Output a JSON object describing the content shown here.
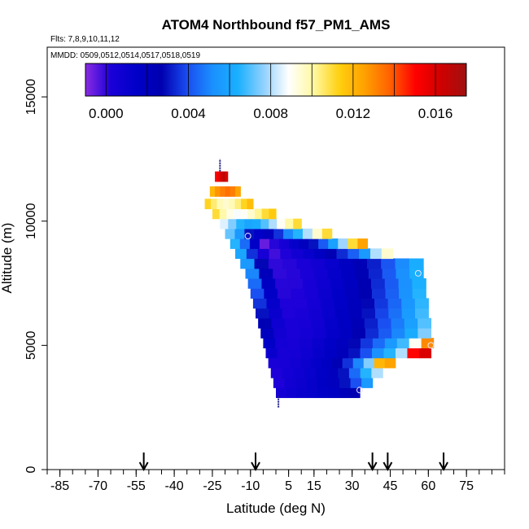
{
  "chart_data": {
    "type": "heatmap",
    "title": "ATOM4 Northbound f57_PM1_AMS",
    "flights_text": "Flts: 7,8,9,10,11,12",
    "dates_text": "MMDD: 0509,0512,0514,0517,0518,0519",
    "xlabel": "Latitude (deg N)",
    "ylabel": "Altitude (m)",
    "xlim": [
      -90,
      90
    ],
    "ylim": [
      0,
      17000
    ],
    "x_minor_step": 5,
    "x_ticks": [
      -85,
      -70,
      -55,
      -40,
      -25,
      -10,
      5,
      15,
      30,
      45,
      60,
      75
    ],
    "y_ticks": [
      0,
      5000,
      10000,
      15000
    ],
    "colorbar": {
      "min": -0.001,
      "max": 0.0175,
      "ticks": [
        0.0,
        0.004,
        0.008,
        0.012,
        0.016
      ],
      "tick_labels": [
        "0.000",
        "0.004",
        "0.008",
        "0.012",
        "0.016"
      ],
      "colors": [
        "#8a2be2",
        "#1a00d8",
        "#0000c8",
        "#0000b0",
        "#1a4cf0",
        "#1a90ff",
        "#1ab0ff",
        "#8fd0ff",
        "#ffffff",
        "#fff8a0",
        "#ffd010",
        "#ffa000",
        "#ff6000",
        "#ff0000",
        "#d00000",
        "#a01010"
      ],
      "divider_values": [
        0.0,
        0.002,
        0.004,
        0.006,
        0.008,
        0.01,
        0.012,
        0.014,
        0.016
      ]
    },
    "arrows_lat": [
      -52,
      -8,
      38,
      44,
      66
    ],
    "rows": [
      {
        "alt": 3100,
        "lat_start": 0,
        "lat_end": 33,
        "values": [
          0.0005,
          0.0008,
          0.001,
          0.0012,
          0.0015,
          0.0018,
          0.0022,
          0.0026
        ]
      },
      {
        "alt": 3500,
        "lat_start": -1,
        "lat_end": 38,
        "values": [
          0.0002,
          0.0006,
          0.0009,
          0.0012,
          0.0016,
          0.002,
          0.003,
          0.004,
          0.0055
        ]
      },
      {
        "alt": 3900,
        "lat_start": -2,
        "lat_end": 42,
        "values": [
          0.0002,
          0.0005,
          0.0008,
          0.0011,
          0.0015,
          0.002,
          0.003,
          0.0045,
          0.0065,
          0.008
        ]
      },
      {
        "alt": 4300,
        "lat_start": -3,
        "lat_end": 47,
        "values": [
          0.0003,
          0.0004,
          0.0006,
          0.0009,
          0.0013,
          0.0018,
          0.0025,
          0.0035,
          0.005,
          0.0075,
          0.012,
          0.0125
        ]
      },
      {
        "alt": 4700,
        "lat_start": -4,
        "lat_end": 61,
        "values": [
          0.001,
          0.0004,
          0.0005,
          0.0008,
          0.0012,
          0.0016,
          0.0022,
          0.003,
          0.004,
          0.0052,
          0.0065,
          0.008,
          0.015,
          0.016
        ]
      },
      {
        "alt": 5100,
        "lat_start": -5,
        "lat_end": 62,
        "values": [
          0.0015,
          0.0005,
          0.0004,
          0.0006,
          0.001,
          0.0015,
          0.002,
          0.0028,
          0.0036,
          0.0045,
          0.0055,
          0.0068,
          0.009,
          0.013
        ]
      },
      {
        "alt": 5500,
        "lat_start": -6,
        "lat_end": 61,
        "values": [
          0.002,
          0.0006,
          0.0003,
          0.0005,
          0.0008,
          0.0013,
          0.0018,
          0.0026,
          0.0034,
          0.0042,
          0.005,
          0.0062,
          0.0075
        ]
      },
      {
        "alt": 5900,
        "lat_start": -7,
        "lat_end": 61,
        "values": [
          0.0025,
          0.0008,
          0.0003,
          0.0004,
          0.0007,
          0.0012,
          0.0017,
          0.0024,
          0.0032,
          0.004,
          0.0048,
          0.0058,
          0.007
        ]
      },
      {
        "alt": 6300,
        "lat_start": -8,
        "lat_end": 60,
        "values": [
          0.003,
          0.001,
          0.0002,
          0.0003,
          0.0006,
          0.0011,
          0.0016,
          0.0022,
          0.003,
          0.0038,
          0.0046,
          0.0056,
          0.0068
        ]
      },
      {
        "alt": 6700,
        "lat_start": -9,
        "lat_end": 60,
        "values": [
          0.0035,
          0.0012,
          0.0002,
          0.0002,
          0.0005,
          0.001,
          0.0015,
          0.0021,
          0.0028,
          0.0036,
          0.0044,
          0.0054,
          0.0066
        ]
      },
      {
        "alt": 7100,
        "lat_start": -10,
        "lat_end": 59,
        "values": [
          0.004,
          0.0015,
          0.0001,
          0.0002,
          0.0004,
          0.0009,
          0.0014,
          0.002,
          0.0027,
          0.0035,
          0.0043,
          0.0053,
          0.0065
        ]
      },
      {
        "alt": 7500,
        "lat_start": -11,
        "lat_end": 59,
        "values": [
          0.0045,
          0.0018,
          0.0001,
          0.0001,
          0.0004,
          0.0008,
          0.0013,
          0.0019,
          0.0026,
          0.0034,
          0.0042,
          0.0052,
          0.0064
        ]
      },
      {
        "alt": 7900,
        "lat_start": -12,
        "lat_end": 58,
        "values": [
          0.005,
          0.0022,
          0.0,
          0.0001,
          0.0003,
          0.0007,
          0.0012,
          0.0018,
          0.0025,
          0.0033,
          0.0042,
          0.0052,
          0.0064
        ]
      },
      {
        "alt": 8300,
        "lat_start": -14,
        "lat_end": 58,
        "values": [
          0.0055,
          0.0028,
          0.0,
          0.0001,
          0.0003,
          0.0006,
          0.0011,
          0.0017,
          0.0024,
          0.0032,
          0.0041,
          0.0051,
          0.0063
        ]
      },
      {
        "alt": 8700,
        "lat_start": -16,
        "lat_end": 46,
        "values": [
          0.006,
          0.0035,
          0.0004,
          -0.0002,
          0.0002,
          0.0006,
          0.0011,
          0.0017,
          0.0025,
          0.0034,
          0.0043,
          0.0055,
          0.008,
          0.0095
        ]
      },
      {
        "alt": 9100,
        "lat_start": -18,
        "lat_end": 36,
        "values": [
          0.0065,
          0.0045,
          0.0015,
          -0.0006,
          0.0001,
          0.0005,
          0.0012,
          0.002,
          0.003,
          0.0042,
          0.0058,
          0.0078,
          0.011,
          0.0125
        ]
      },
      {
        "alt": 9500,
        "lat_start": -20,
        "lat_end": 22,
        "values": [
          0.0072,
          0.0055,
          0.003,
          0.0015,
          0.002,
          0.0035,
          0.005,
          0.0065,
          0.008,
          0.0095,
          0.011
        ]
      },
      {
        "alt": 9900,
        "lat_start": -22,
        "lat_end": 10,
        "values": [
          0.0085,
          0.0075,
          0.0065,
          0.006,
          0.0062,
          0.007,
          0.008,
          0.009,
          0.01,
          0.011
        ]
      },
      {
        "alt": 10300,
        "lat_start": -25,
        "lat_end": 0,
        "values": [
          0.011,
          0.01,
          0.0092,
          0.0088,
          0.009,
          0.0095,
          0.0102,
          0.011,
          0.0115
        ]
      },
      {
        "alt": 10700,
        "lat_start": -28,
        "lat_end": -9,
        "values": [
          0.0112,
          0.0105,
          0.0098,
          0.0095,
          0.0098,
          0.0104,
          0.0112,
          0.0118
        ]
      },
      {
        "alt": 11200,
        "lat_start": -26,
        "lat_end": -14,
        "values": [
          0.012,
          0.0128,
          0.0132,
          0.0135,
          0.0132,
          0.0125
        ]
      },
      {
        "alt": 11800,
        "lat_start": -24,
        "lat_end": -19,
        "values": [
          0.015,
          0.0155,
          0.0162,
          0.0168,
          0.016
        ]
      }
    ],
    "row_height": 400,
    "circles": [
      {
        "lat": -11,
        "alt": 9400
      },
      {
        "lat": 56,
        "alt": 7900
      },
      {
        "lat": 61,
        "alt": 5000
      },
      {
        "lat": 33,
        "alt": 3200
      }
    ],
    "vertical_marks": [
      {
        "lat": -22,
        "alt_from": 12000,
        "alt_to": 12500
      },
      {
        "lat": 1,
        "alt_from": 2500,
        "alt_to": 3000
      }
    ]
  }
}
